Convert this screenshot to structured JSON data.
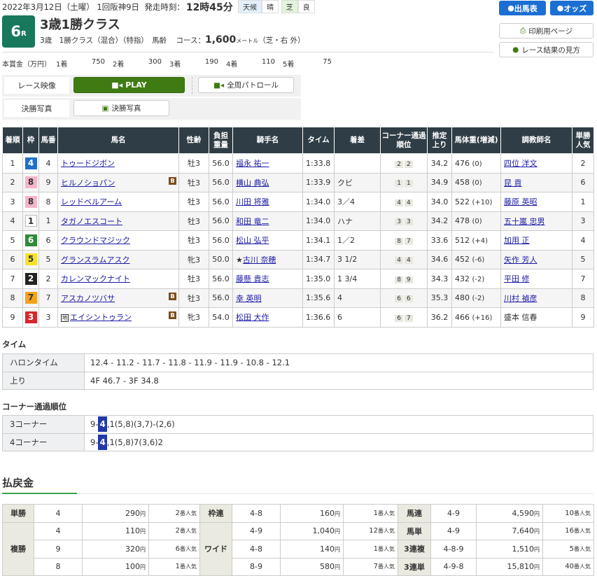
{
  "header": {
    "date": "2022年3月12日（土曜）",
    "meeting": "1回阪神9日",
    "post_label": "発走時刻：",
    "post_time": "12時45分",
    "weather_label": "天候",
    "weather": "晴",
    "surface": "芝",
    "condition": "良",
    "race_no": "6",
    "race_suffix": "R",
    "title": "3歳1勝クラス",
    "conditions": "3歳　1勝クラス（混合）（特指）　馬齢",
    "course_label": "コース：",
    "distance": "1,600",
    "unit": "メートル",
    "course_detail": "（芝・右 外）"
  },
  "prize": {
    "label": "本賞金（万円）",
    "items": [
      {
        "rank": "1着",
        "value": "750"
      },
      {
        "rank": "2着",
        "value": "300"
      },
      {
        "rank": "3着",
        "value": "190"
      },
      {
        "rank": "4着",
        "value": "110"
      },
      {
        "rank": "5着",
        "value": "75"
      }
    ]
  },
  "nav": {
    "entries": "出馬表",
    "odds": "オッズ",
    "print": "印刷用ページ",
    "howto": "レース結果の見方"
  },
  "video": {
    "label": "レース映像",
    "play": "PLAY",
    "patrol": "全周パトロール",
    "photo_label": "決勝写真",
    "photo_button": "決勝写真"
  },
  "colors": {
    "play": "#3f7b12",
    "header_bg": "#2f3e46",
    "race_badge": "#17785c",
    "nav_blue": "#1b6fd2"
  },
  "table": {
    "headers": [
      "着順",
      "枠",
      "馬番",
      "馬名",
      "性齢",
      "負担重量",
      "騎手名",
      "タイム",
      "着差",
      "コーナー通過順位",
      "推定上り",
      "馬体重(増減)",
      "調教師名",
      "単勝人気"
    ],
    "rows": [
      {
        "rank": "1",
        "waku": "4",
        "num": "4",
        "horse": "トゥードジボン",
        "blinker": false,
        "chi": false,
        "sex": "牡3",
        "wt": "56.0",
        "jockey": "福永 祐一",
        "star": "",
        "time": "1:33.8",
        "margin": "",
        "c3": "2",
        "c4": "2",
        "last": "34.2",
        "body": "476",
        "diff": "(0)",
        "trainer": "四位 洋文",
        "tlink": true,
        "pop": "2"
      },
      {
        "rank": "2",
        "waku": "8",
        "num": "9",
        "horse": "ヒルノショパン",
        "blinker": true,
        "chi": false,
        "sex": "牡3",
        "wt": "56.0",
        "jockey": "横山 典弘",
        "star": "",
        "time": "1:33.9",
        "margin": "クビ",
        "c3": "1",
        "c4": "1",
        "last": "34.9",
        "body": "458",
        "diff": "(0)",
        "trainer": "昆 貢",
        "tlink": true,
        "pop": "6"
      },
      {
        "rank": "3",
        "waku": "8",
        "num": "8",
        "horse": "レッドベルアーム",
        "blinker": false,
        "chi": false,
        "sex": "牡3",
        "wt": "56.0",
        "jockey": "川田 将雅",
        "star": "",
        "time": "1:34.0",
        "margin": "3／4",
        "c3": "4",
        "c4": "4",
        "last": "34.0",
        "body": "522",
        "diff": "(+10)",
        "trainer": "藤原 英昭",
        "tlink": true,
        "pop": "1"
      },
      {
        "rank": "4",
        "waku": "1",
        "num": "1",
        "horse": "タガノエスコート",
        "blinker": false,
        "chi": false,
        "sex": "牡3",
        "wt": "56.0",
        "jockey": "和田 竜二",
        "star": "",
        "time": "1:34.0",
        "margin": "ハナ",
        "c3": "3",
        "c4": "3",
        "last": "34.2",
        "body": "478",
        "diff": "(0)",
        "trainer": "五十嵐 忠男",
        "tlink": true,
        "pop": "3"
      },
      {
        "rank": "5",
        "waku": "6",
        "num": "6",
        "horse": "クラウンドマジック",
        "blinker": false,
        "chi": false,
        "sex": "牡3",
        "wt": "56.0",
        "jockey": "松山 弘平",
        "star": "",
        "time": "1:34.1",
        "margin": "1／2",
        "c3": "8",
        "c4": "7",
        "last": "33.6",
        "body": "512",
        "diff": "(+4)",
        "trainer": "加用 正",
        "tlink": true,
        "pop": "4"
      },
      {
        "rank": "6",
        "waku": "5",
        "num": "5",
        "horse": "グランスラムアスク",
        "blinker": false,
        "chi": false,
        "sex": "牝3",
        "wt": "50.0",
        "jockey": "古川 奈穂",
        "star": "★",
        "time": "1:34.7",
        "margin": "3 1/2",
        "c3": "4",
        "c4": "4",
        "last": "34.6",
        "body": "452",
        "diff": "(-6)",
        "trainer": "矢作 芳人",
        "tlink": true,
        "pop": "5"
      },
      {
        "rank": "7",
        "waku": "2",
        "num": "2",
        "horse": "カレンマックナイト",
        "blinker": false,
        "chi": false,
        "sex": "牡3",
        "wt": "56.0",
        "jockey": "藤懸 貴志",
        "star": "",
        "time": "1:35.0",
        "margin": "1 3/4",
        "c3": "8",
        "c4": "9",
        "last": "34.3",
        "body": "432",
        "diff": "(-2)",
        "trainer": "平田 修",
        "tlink": true,
        "pop": "7"
      },
      {
        "rank": "8",
        "waku": "7",
        "num": "7",
        "horse": "アスカノツバサ",
        "blinker": true,
        "chi": false,
        "sex": "牡3",
        "wt": "56.0",
        "jockey": "幸 英明",
        "star": "",
        "time": "1:35.6",
        "margin": "4",
        "c3": "6",
        "c4": "6",
        "last": "35.3",
        "body": "480",
        "diff": "(-2)",
        "trainer": "川村 禎彦",
        "tlink": true,
        "pop": "8"
      },
      {
        "rank": "9",
        "waku": "3",
        "num": "3",
        "horse": "エイシントゥラン",
        "blinker": true,
        "chi": true,
        "sex": "牝3",
        "wt": "54.0",
        "jockey": "松田 大作",
        "star": "",
        "time": "1:36.6",
        "margin": "6",
        "c3": "6",
        "c4": "7",
        "last": "36.2",
        "body": "466",
        "diff": "(+16)",
        "trainer": "盛本 信春",
        "tlink": false,
        "pop": "9"
      }
    ],
    "blinker_mark": "B",
    "chi_mark": "地"
  },
  "waku_colors": {
    "1": [
      "#ffffff",
      "#333"
    ],
    "2": [
      "#222222",
      "#fff"
    ],
    "3": [
      "#d7282c",
      "#fff"
    ],
    "4": [
      "#1e6fc8",
      "#fff"
    ],
    "5": [
      "#f6e22a",
      "#333"
    ],
    "6": [
      "#2f8a3a",
      "#fff"
    ],
    "7": [
      "#f5a21d",
      "#333"
    ],
    "8": [
      "#f4b6c8",
      "#333"
    ]
  },
  "time": {
    "heading": "タイム",
    "furlong_label": "ハロンタイム",
    "furlong": "12.4 - 11.2 - 11.7 - 11.8 - 11.9 - 11.9 - 10.8 - 12.1",
    "last_label": "上り",
    "last": "4F 46.7 - 3F 34.8"
  },
  "corner": {
    "heading": "コーナー通過順位",
    "rows": [
      {
        "label": "3コーナー",
        "pre": "9-",
        "hl": "4",
        "post": ",1(5,8)(3,7)-(2,6)"
      },
      {
        "label": "4コーナー",
        "pre": "9-",
        "hl": "4",
        "post": ",1(5,8)7(3,6)2"
      }
    ]
  },
  "payout": {
    "heading": "払戻金",
    "yen": "円",
    "popsuffix": "番人気",
    "win": {
      "label": "単勝",
      "num": "4",
      "yen": "290",
      "pop": "2"
    },
    "place": {
      "label": "複勝",
      "rows": [
        {
          "num": "4",
          "yen": "110",
          "pop": "2"
        },
        {
          "num": "9",
          "yen": "320",
          "pop": "6"
        },
        {
          "num": "8",
          "yen": "100",
          "pop": "1"
        }
      ]
    },
    "bracket": {
      "label": "枠連",
      "num": "4-8",
      "yen": "160",
      "pop": "1"
    },
    "wide": {
      "label": "ワイド",
      "rows": [
        {
          "num": "4-9",
          "yen": "1,040",
          "pop": "12"
        },
        {
          "num": "4-8",
          "yen": "140",
          "pop": "1"
        },
        {
          "num": "8-9",
          "yen": "580",
          "pop": "7"
        }
      ]
    },
    "right": [
      {
        "label": "馬連",
        "num": "4-9",
        "yen": "4,590",
        "pop": "10"
      },
      {
        "label": "馬単",
        "num": "4-9",
        "yen": "7,640",
        "pop": "16"
      },
      {
        "label": "3連複",
        "num": "4-8-9",
        "yen": "1,510",
        "pop": "5"
      },
      {
        "label": "3連単",
        "num": "4-9-8",
        "yen": "15,810",
        "pop": "40"
      }
    ]
  }
}
